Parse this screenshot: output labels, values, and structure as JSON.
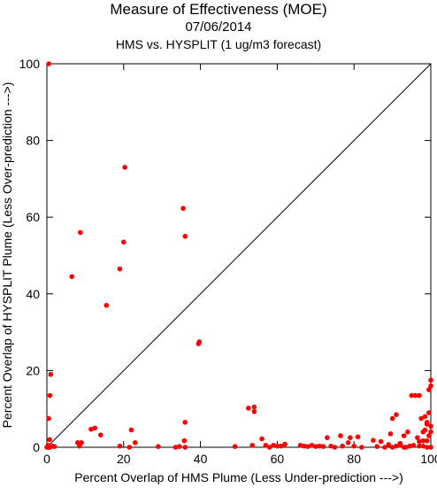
{
  "chart_data": {
    "type": "scatter",
    "title": "Measure of Effectiveness (MOE)",
    "subtitle": "07/06/2014",
    "subtitle2": "HMS vs. HYSPLIT  (1 ug/m3 forecast)",
    "xlabel": "Percent Overlap of HMS Plume (Less Under-prediction --->)",
    "ylabel": "Percent Overlap of HYSPLIT Plume (Less Over-prediction --->)",
    "xlim": [
      0,
      100
    ],
    "ylim": [
      0,
      100
    ],
    "xticks": [
      0,
      20,
      40,
      60,
      80,
      100
    ],
    "yticks": [
      0,
      20,
      40,
      60,
      80,
      100
    ],
    "diagonal_reference_line": true,
    "grid": false,
    "point_color": "#ff0000",
    "series": [
      {
        "x": [
          0.5,
          1,
          0.8,
          0.5,
          0.7,
          0.3,
          0.5,
          1.5,
          0.5,
          0,
          2,
          0.8,
          6.5,
          8.7,
          8,
          9,
          8.5,
          11.5,
          12.5,
          15.5,
          14,
          19,
          20.3,
          20,
          19,
          22,
          23,
          21.5,
          29,
          34.5,
          35.5,
          36,
          36,
          35.8,
          39.5,
          39.7,
          36,
          33.5,
          49,
          52.5,
          54,
          54,
          53.5,
          56,
          57,
          58,
          59,
          60,
          61,
          62,
          66,
          67,
          68,
          69,
          70,
          71,
          72,
          73,
          74,
          75,
          76.5,
          77,
          78.5,
          79,
          80,
          81,
          82,
          85,
          86,
          87,
          88,
          89.5,
          90,
          91,
          92,
          93,
          93.5,
          94,
          95,
          96,
          96.5,
          97,
          98,
          98.5,
          99,
          99.5,
          100,
          100,
          99.5,
          98.5,
          97.5,
          99,
          100,
          100,
          99.5,
          99,
          98,
          97,
          95.5,
          94.5,
          93,
          92,
          91,
          90,
          89,
          100,
          99,
          98,
          97
        ],
        "y": [
          100,
          19,
          13.5,
          7.5,
          2,
          0.5,
          0,
          0.3,
          0,
          0,
          0.2,
          0,
          44.5,
          56,
          1.2,
          1.2,
          0.3,
          4.7,
          5,
          37,
          3.2,
          46.5,
          73,
          53.5,
          0.3,
          4.5,
          1.2,
          0,
          0.2,
          0.2,
          62.3,
          55,
          6.5,
          1.7,
          27,
          27.5,
          0,
          0,
          0.2,
          10.2,
          10.5,
          9.3,
          0.5,
          2.2,
          0.5,
          0,
          0.5,
          0.3,
          0.3,
          0.8,
          0.5,
          0.3,
          0.2,
          0.5,
          0.2,
          0.3,
          0.2,
          2.5,
          0.3,
          0,
          3,
          0.3,
          1.2,
          2.5,
          0.3,
          2.7,
          0,
          1.8,
          0.2,
          1.5,
          0,
          3.5,
          7.5,
          8.5,
          1,
          3,
          0,
          4,
          13.5,
          13.5,
          2.5,
          13.5,
          4,
          4.5,
          6.5,
          15,
          16,
          17.5,
          9,
          8,
          7.5,
          6,
          5.5,
          4,
          3,
          1.7,
          1.7,
          1.5,
          0.5,
          0.3,
          0,
          0.5,
          0.3,
          0,
          0.7,
          0,
          0,
          0.3,
          0.3
        ]
      }
    ]
  }
}
